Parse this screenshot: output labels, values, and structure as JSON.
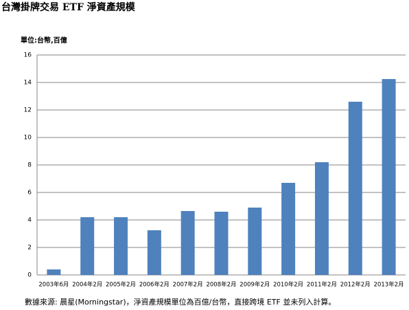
{
  "chart_data": {
    "type": "bar",
    "title": "台灣掛牌交易 ETF 淨資產規模",
    "y_label": "單位:台幣,百億",
    "categories": [
      "2003年6月",
      "2004年2月",
      "2005年2月",
      "2006年2月",
      "2007年2月",
      "2008年2月",
      "2009年2月",
      "2010年2月",
      "2011年2月",
      "2012年2月",
      "2013年2月"
    ],
    "values": [
      0.4,
      4.2,
      4.2,
      3.25,
      4.65,
      4.6,
      4.9,
      6.7,
      8.2,
      12.6,
      14.25
    ],
    "color": "#4f81bd",
    "ylim": [
      0,
      16
    ],
    "yticks": [
      0,
      2,
      4,
      6,
      8,
      10,
      12,
      14,
      16
    ],
    "grid": true,
    "source": "數據來源: 晨星(Morningstar)，淨資產規模單位為百億/台幣，直接跨境 ETF 並未列入計算。"
  }
}
